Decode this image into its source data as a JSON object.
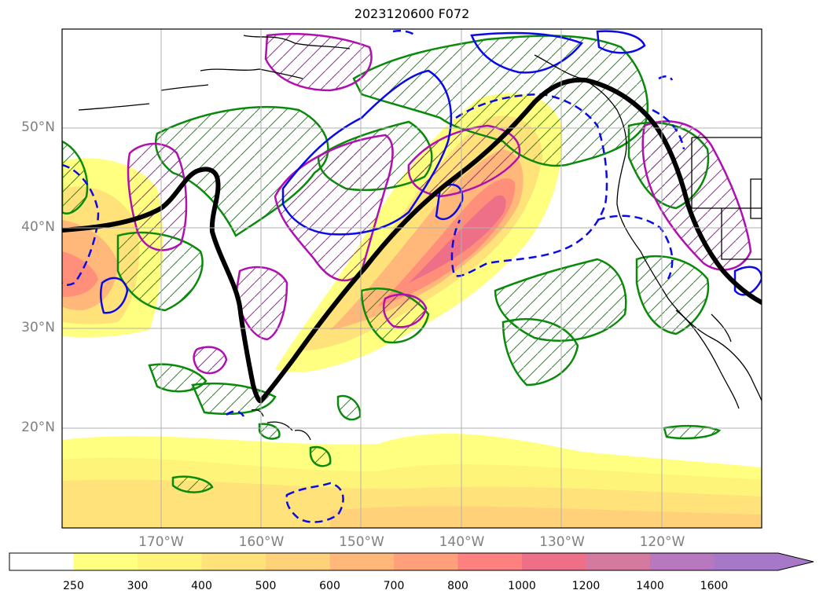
{
  "title": "2023120600 F072",
  "lat_ticks": [
    {
      "label": "50°N",
      "value": 50
    },
    {
      "label": "40°N",
      "value": 40
    },
    {
      "label": "30°N",
      "value": 30
    },
    {
      "label": "20°N",
      "value": 20
    }
  ],
  "lon_ticks": [
    {
      "label": "170°W",
      "value": -170
    },
    {
      "label": "160°W",
      "value": -160
    },
    {
      "label": "150°W",
      "value": -150
    },
    {
      "label": "140°W",
      "value": -140
    },
    {
      "label": "130°W",
      "value": -130
    },
    {
      "label": "120°W",
      "value": -120
    }
  ],
  "colorbar": {
    "levels": [
      "250",
      "300",
      "400",
      "500",
      "600",
      "700",
      "800",
      "1000",
      "1200",
      "1400",
      "1600"
    ],
    "colors": [
      "#ffffff",
      "#ffff80",
      "#fff47a",
      "#ffe27a",
      "#ffd27a",
      "#ffb87a",
      "#ffa07a",
      "#ff8080",
      "#ee7088",
      "#d47aa0",
      "#b878c0",
      "#a878c8"
    ],
    "extend": "max"
  }
}
